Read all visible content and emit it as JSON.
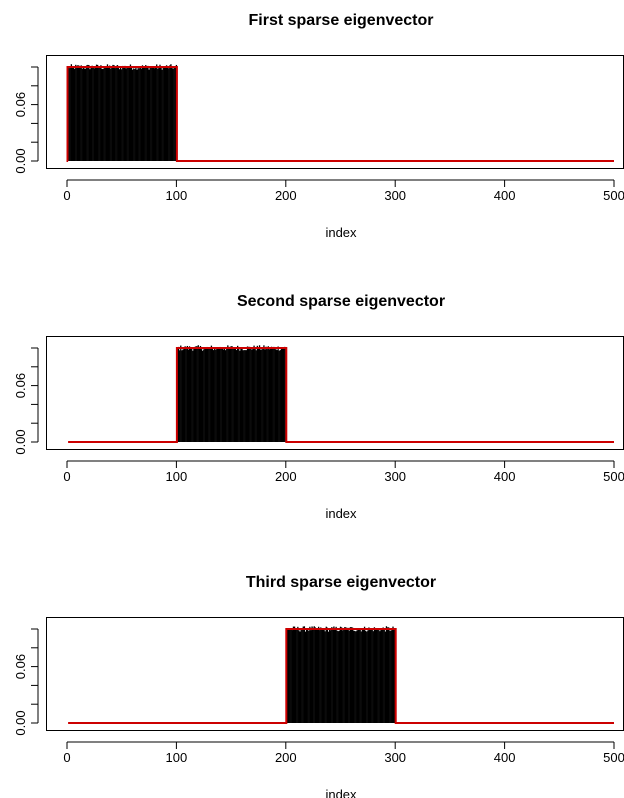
{
  "chart_data": [
    {
      "type": "bar",
      "title": "First sparse eigenvector",
      "xlabel": "index",
      "ylabel": "",
      "xlim": [
        0,
        500
      ],
      "ylim": [
        0,
        0.1
      ],
      "x_ticks": [
        "0",
        "100",
        "200",
        "300",
        "400",
        "500"
      ],
      "y_ticks": [
        "0.00",
        "0.06"
      ],
      "support": [
        1,
        100
      ],
      "series": [
        {
          "style": "black vertical bars (noisy estimate)",
          "level": 0.1,
          "noise": 0.003
        },
        {
          "style": "red step line (true eigenvector)",
          "level": 0.1
        }
      ]
    },
    {
      "type": "bar",
      "title": "Second sparse eigenvector",
      "xlabel": "index",
      "ylabel": "",
      "xlim": [
        0,
        500
      ],
      "ylim": [
        0,
        0.1
      ],
      "x_ticks": [
        "0",
        "100",
        "200",
        "300",
        "400",
        "500"
      ],
      "y_ticks": [
        "0.00",
        "0.06"
      ],
      "support": [
        101,
        200
      ],
      "series": [
        {
          "style": "black vertical bars (noisy estimate)",
          "level": 0.1,
          "noise": 0.003
        },
        {
          "style": "red step line (true eigenvector)",
          "level": 0.1
        }
      ]
    },
    {
      "type": "bar",
      "title": "Third sparse eigenvector",
      "xlabel": "index",
      "ylabel": "",
      "xlim": [
        0,
        500
      ],
      "ylim": [
        0,
        0.1
      ],
      "x_ticks": [
        "0",
        "100",
        "200",
        "300",
        "400",
        "500"
      ],
      "y_ticks": [
        "0.00",
        "0.06"
      ],
      "support": [
        201,
        300
      ],
      "series": [
        {
          "style": "black vertical bars (noisy estimate)",
          "level": 0.1,
          "noise": 0.003
        },
        {
          "style": "red step line (true eigenvector)",
          "level": 0.1
        }
      ]
    }
  ],
  "colors": {
    "bars": "#000000",
    "true_line": "#cc0000",
    "axis": "#000000",
    "background": "#ffffff"
  }
}
